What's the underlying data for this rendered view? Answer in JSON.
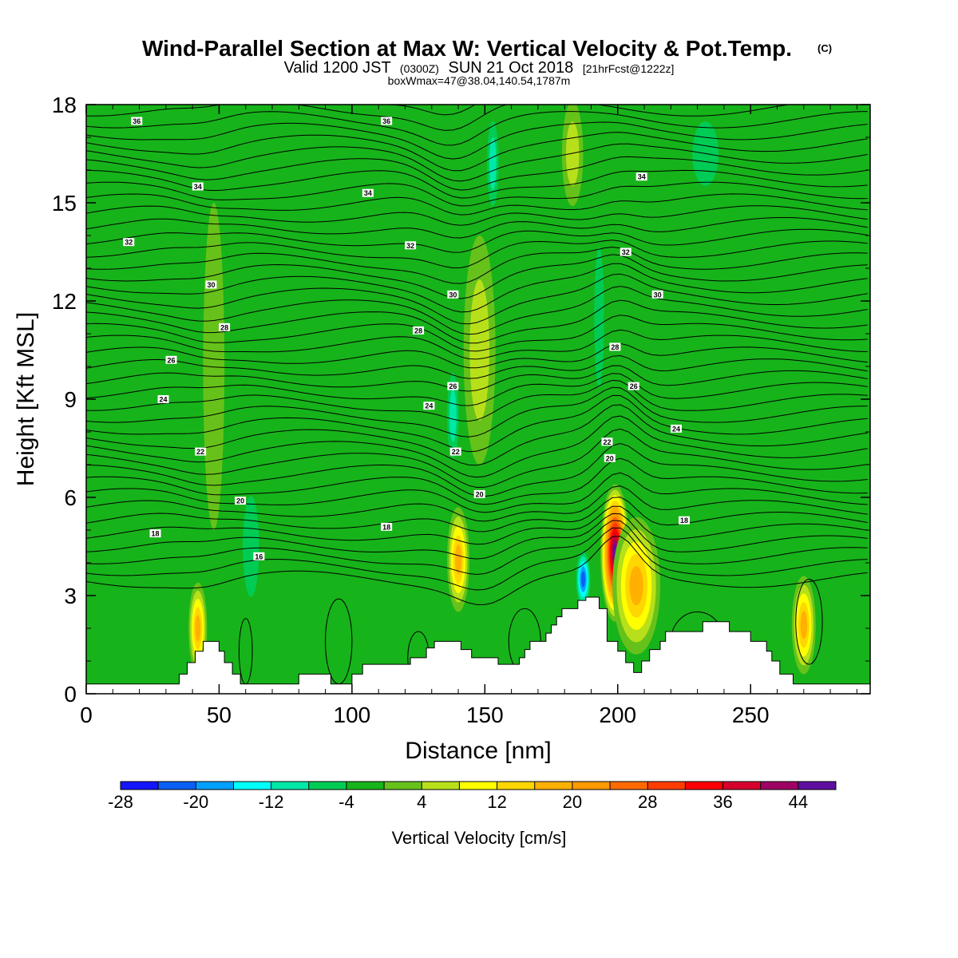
{
  "chart_data": {
    "type": "heatmap",
    "title": "Wind-Parallel Section at Max W: Vertical Velocity & Pot.Temp.",
    "title_mark": "(C)",
    "subtitle_valid": "Valid 1200 JST",
    "subtitle_z": "(0300Z)",
    "subtitle_date": "SUN 21 Oct 2018",
    "subtitle_fcst": "[21hrFcst@1222z]",
    "subtitle2": "boxWmax=47@38.04,140.54,1787m",
    "xlabel": "Distance [nm]",
    "ylabel": "Height [Kft MSL]",
    "xlim": [
      0,
      295
    ],
    "ylim": [
      0,
      18
    ],
    "x_ticks": [
      0,
      50,
      100,
      150,
      200,
      250
    ],
    "x_tick_labels": [
      "0",
      "50",
      "100",
      "150",
      "200",
      "250"
    ],
    "y_ticks": [
      0,
      3,
      6,
      9,
      12,
      15,
      18
    ],
    "y_tick_labels": [
      "0",
      "3",
      "6",
      "9",
      "12",
      "15",
      "18"
    ],
    "background_color": "#17b31a",
    "colorbar": {
      "label": "Vertical Velocity [cm/s]",
      "levels": [
        -28,
        -24,
        -20,
        -16,
        -12,
        -8,
        -4,
        0,
        4,
        8,
        12,
        16,
        20,
        24,
        28,
        32,
        36,
        40,
        44,
        48
      ],
      "tick_values": [
        -28,
        -20,
        -12,
        -4,
        4,
        12,
        20,
        28,
        36,
        44
      ],
      "tick_labels": [
        "-28",
        "-20",
        "-12",
        "-4",
        "4",
        "12",
        "20",
        "28",
        "36",
        "44"
      ],
      "colors": [
        "#1414ff",
        "#0a5ff5",
        "#00a0ff",
        "#00ffff",
        "#00e8a8",
        "#00cc55",
        "#17b31a",
        "#66c21a",
        "#b8e01a",
        "#ffff00",
        "#ffd700",
        "#ffb000",
        "#ff9a00",
        "#ff6a00",
        "#ff3d00",
        "#ff0000",
        "#d7002d",
        "#9e0063",
        "#5f0fa0"
      ]
    },
    "terrain": [
      [
        0,
        0.3
      ],
      [
        35,
        0.3
      ],
      [
        35,
        0.6
      ],
      [
        38,
        0.6
      ],
      [
        38,
        0.95
      ],
      [
        41,
        0.95
      ],
      [
        41,
        1.3
      ],
      [
        44,
        1.3
      ],
      [
        44,
        1.6
      ],
      [
        50,
        1.6
      ],
      [
        50,
        1.3
      ],
      [
        52,
        1.3
      ],
      [
        52,
        0.95
      ],
      [
        55,
        0.95
      ],
      [
        55,
        0.6
      ],
      [
        58,
        0.6
      ],
      [
        58,
        0.3
      ],
      [
        80,
        0.3
      ],
      [
        80,
        0.6
      ],
      [
        92,
        0.6
      ],
      [
        92,
        0.3
      ],
      [
        100,
        0.3
      ],
      [
        100,
        0.6
      ],
      [
        104,
        0.6
      ],
      [
        104,
        0.9
      ],
      [
        122,
        0.9
      ],
      [
        122,
        1.1
      ],
      [
        128,
        1.1
      ],
      [
        128,
        1.4
      ],
      [
        131,
        1.4
      ],
      [
        131,
        1.6
      ],
      [
        141,
        1.6
      ],
      [
        141,
        1.35
      ],
      [
        145,
        1.35
      ],
      [
        145,
        1.1
      ],
      [
        155,
        1.1
      ],
      [
        155,
        0.9
      ],
      [
        163,
        0.9
      ],
      [
        163,
        1.1
      ],
      [
        165,
        1.1
      ],
      [
        165,
        1.35
      ],
      [
        167,
        1.35
      ],
      [
        167,
        1.6
      ],
      [
        173,
        1.6
      ],
      [
        173,
        1.85
      ],
      [
        175,
        1.85
      ],
      [
        175,
        2.1
      ],
      [
        177,
        2.1
      ],
      [
        177,
        2.35
      ],
      [
        179,
        2.35
      ],
      [
        179,
        2.6
      ],
      [
        185,
        2.6
      ],
      [
        185,
        2.85
      ],
      [
        188,
        2.85
      ],
      [
        188,
        2.95
      ],
      [
        193,
        2.95
      ],
      [
        193,
        2.6
      ],
      [
        196,
        2.6
      ],
      [
        196,
        1.6
      ],
      [
        200,
        1.6
      ],
      [
        200,
        1.3
      ],
      [
        203,
        1.3
      ],
      [
        203,
        0.95
      ],
      [
        206,
        0.95
      ],
      [
        206,
        0.65
      ],
      [
        209,
        0.65
      ],
      [
        209,
        1.0
      ],
      [
        212,
        1.0
      ],
      [
        212,
        1.35
      ],
      [
        216,
        1.35
      ],
      [
        216,
        1.6
      ],
      [
        218,
        1.6
      ],
      [
        218,
        1.9
      ],
      [
        232,
        1.9
      ],
      [
        232,
        2.2
      ],
      [
        242,
        2.2
      ],
      [
        242,
        1.9
      ],
      [
        250,
        1.9
      ],
      [
        250,
        1.6
      ],
      [
        256,
        1.6
      ],
      [
        256,
        1.3
      ],
      [
        258,
        1.3
      ],
      [
        258,
        1.0
      ],
      [
        261,
        1.0
      ],
      [
        261,
        0.6
      ],
      [
        266,
        0.6
      ],
      [
        266,
        0.3
      ],
      [
        295,
        0.3
      ]
    ],
    "updrafts": [
      {
        "x": 42,
        "y": 2.0,
        "rx": 3.5,
        "ry": 1.4,
        "w": 18
      },
      {
        "x": 140,
        "y": 4.1,
        "rx": 4.2,
        "ry": 1.6,
        "w": 18
      },
      {
        "x": 199,
        "y": 4.3,
        "rx": 5.5,
        "ry": 2.1,
        "w": 47
      },
      {
        "x": 207,
        "y": 3.3,
        "rx": 9,
        "ry": 2.1,
        "w": 20
      },
      {
        "x": 270,
        "y": 2.1,
        "rx": 4.5,
        "ry": 1.5,
        "w": 18
      },
      {
        "x": 148,
        "y": 10.5,
        "rx": 6,
        "ry": 3.5,
        "w": 6
      },
      {
        "x": 183,
        "y": 16.5,
        "rx": 4,
        "ry": 1.6,
        "w": 6
      },
      {
        "x": 48,
        "y": 10.0,
        "rx": 4,
        "ry": 5,
        "w": 2
      }
    ],
    "downdrafts": [
      {
        "x": 187,
        "y": 3.5,
        "rx": 3.2,
        "ry": 1.0,
        "w": -22
      },
      {
        "x": 138,
        "y": 8.5,
        "rx": 3,
        "ry": 1.8,
        "w": -10
      },
      {
        "x": 153,
        "y": 16.2,
        "rx": 3,
        "ry": 1.8,
        "w": -10
      },
      {
        "x": 193,
        "y": 11.5,
        "rx": 3,
        "ry": 3.5,
        "w": -8
      },
      {
        "x": 233,
        "y": 16.5,
        "rx": 8,
        "ry": 1.6,
        "w": -6
      },
      {
        "x": 62,
        "y": 4.5,
        "rx": 5,
        "ry": 2.5,
        "w": -6
      }
    ],
    "theta_contours": {
      "levels": [
        16,
        18,
        20,
        22,
        24,
        26,
        28,
        30,
        32,
        34,
        36
      ],
      "labels": [
        {
          "text": "36",
          "x": 19,
          "y": 17.5
        },
        {
          "text": "36",
          "x": 113,
          "y": 17.5
        },
        {
          "text": "34",
          "x": 42,
          "y": 15.5
        },
        {
          "text": "34",
          "x": 106,
          "y": 15.3
        },
        {
          "text": "34",
          "x": 209,
          "y": 15.8
        },
        {
          "text": "32",
          "x": 16,
          "y": 13.8
        },
        {
          "text": "32",
          "x": 122,
          "y": 13.7
        },
        {
          "text": "32",
          "x": 203,
          "y": 13.5
        },
        {
          "text": "30",
          "x": 47,
          "y": 12.5
        },
        {
          "text": "30",
          "x": 138,
          "y": 12.2
        },
        {
          "text": "30",
          "x": 215,
          "y": 12.2
        },
        {
          "text": "28",
          "x": 52,
          "y": 11.2
        },
        {
          "text": "28",
          "x": 125,
          "y": 11.1
        },
        {
          "text": "28",
          "x": 199,
          "y": 10.6
        },
        {
          "text": "26",
          "x": 32,
          "y": 10.2
        },
        {
          "text": "26",
          "x": 138,
          "y": 9.4
        },
        {
          "text": "26",
          "x": 206,
          "y": 9.4
        },
        {
          "text": "24",
          "x": 29,
          "y": 9.0
        },
        {
          "text": "24",
          "x": 129,
          "y": 8.8
        },
        {
          "text": "24",
          "x": 222,
          "y": 8.1
        },
        {
          "text": "22",
          "x": 43,
          "y": 7.4
        },
        {
          "text": "22",
          "x": 139,
          "y": 7.4
        },
        {
          "text": "22",
          "x": 196,
          "y": 7.7
        },
        {
          "text": "20",
          "x": 58,
          "y": 5.9
        },
        {
          "text": "20",
          "x": 148,
          "y": 6.1
        },
        {
          "text": "20",
          "x": 197,
          "y": 7.2
        },
        {
          "text": "18",
          "x": 26,
          "y": 4.9
        },
        {
          "text": "18",
          "x": 113,
          "y": 5.1
        },
        {
          "text": "18",
          "x": 225,
          "y": 5.3
        },
        {
          "text": "16",
          "x": 65,
          "y": 4.2
        }
      ]
    }
  }
}
